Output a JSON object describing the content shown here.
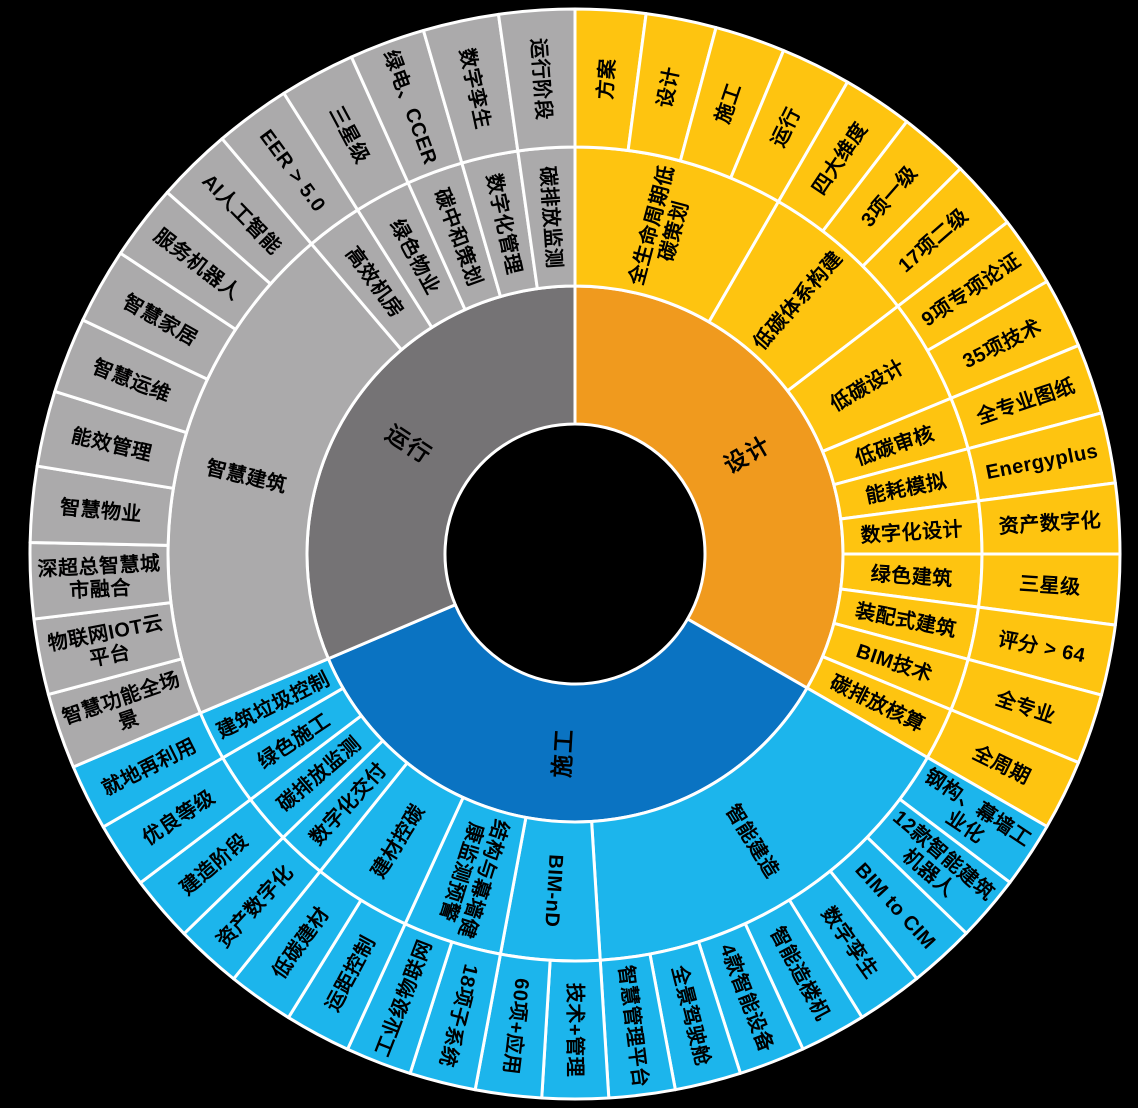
{
  "chart_data": {
    "type": "sunburst",
    "title": "",
    "background": "#000000",
    "stroke_color": "#ffffff",
    "label_color": "#000000",
    "legend": "none",
    "rings": [
      "phase",
      "category",
      "item"
    ],
    "sectors": [
      {
        "label": "设计",
        "start_angle": 0,
        "end_angle": 120,
        "inner_color": "#F09A1E",
        "ring_color": "#FEC410",
        "groups": [
          {
            "label": "全生命周期低碳策划",
            "items": [
              "方案",
              "设计",
              "施工",
              "运行"
            ]
          },
          {
            "label": "低碳体系构建",
            "items": [
              "四大维度",
              "3项一级",
              "17项二级"
            ]
          },
          {
            "label": "低碳设计",
            "items": [
              "9项专项论证",
              "35项技术"
            ]
          },
          {
            "label": "低碳审核",
            "items": [
              "全专业图纸"
            ]
          },
          {
            "label": "能耗模拟",
            "items": [
              "Energyplus"
            ]
          },
          {
            "label": "数字化设计",
            "items": [
              "资产数字化"
            ]
          },
          {
            "label": "绿色建筑",
            "items": [
              "三星级"
            ]
          },
          {
            "label": "装配式建筑",
            "items": [
              "评分 > 64"
            ]
          },
          {
            "label": "BIM技术",
            "items": [
              "全专业"
            ]
          },
          {
            "label": "碳排放核算",
            "items": [
              "全周期"
            ]
          }
        ]
      },
      {
        "label": "施工",
        "start_angle": 120,
        "end_angle": 247,
        "inner_color": "#0A73C2",
        "ring_color": "#1CB5EC",
        "groups": [
          {
            "label": "智能建造",
            "items": [
              "钢构、幕墙工业化",
              "12款智能建筑机器人",
              "BIM to CIM",
              "数字孪生",
              "智能造楼机",
              "4款智能设备",
              "全景驾驶舱",
              "智慧管理平台"
            ]
          },
          {
            "label": "BIM-nD",
            "items": [
              "技术+管理",
              "60项+应用"
            ]
          },
          {
            "label": "结构与幕墙健康监测预警",
            "items": [
              "18项子系统",
              "工业级物联网"
            ]
          },
          {
            "label": "建材控碳",
            "items": [
              "运距控制",
              "低碳建材"
            ]
          },
          {
            "label": "数字化交付",
            "items": [
              "资产数字化"
            ]
          },
          {
            "label": "碳排放监测",
            "items": [
              "建造阶段"
            ]
          },
          {
            "label": "绿色施工",
            "items": [
              "优良等级"
            ]
          },
          {
            "label": "建筑垃圾控制",
            "items": [
              "就地再利用"
            ]
          }
        ]
      },
      {
        "label": "运行",
        "start_angle": 247,
        "end_angle": 360,
        "inner_color": "#757375",
        "ring_color": "#ABAAAB",
        "groups": [
          {
            "label": "智慧建筑",
            "items": [
              "智慧功能全场景",
              "物联网IOT云平台",
              "深超总智慧城市融合",
              "智慧物业",
              "能效管理",
              "智慧运维",
              "智慧家居",
              "服务机器人",
              "AI人工智能"
            ]
          },
          {
            "label": "高效机房",
            "items": [
              "EER > 5.0"
            ]
          },
          {
            "label": "绿色物业",
            "items": [
              "三星级"
            ]
          },
          {
            "label": "碳中和策划",
            "items": [
              "绿电、CCER"
            ]
          },
          {
            "label": "数字化管理",
            "items": [
              "数字孪生"
            ]
          },
          {
            "label": "碳排放监测",
            "items": [
              "运行阶段"
            ]
          }
        ]
      }
    ]
  }
}
